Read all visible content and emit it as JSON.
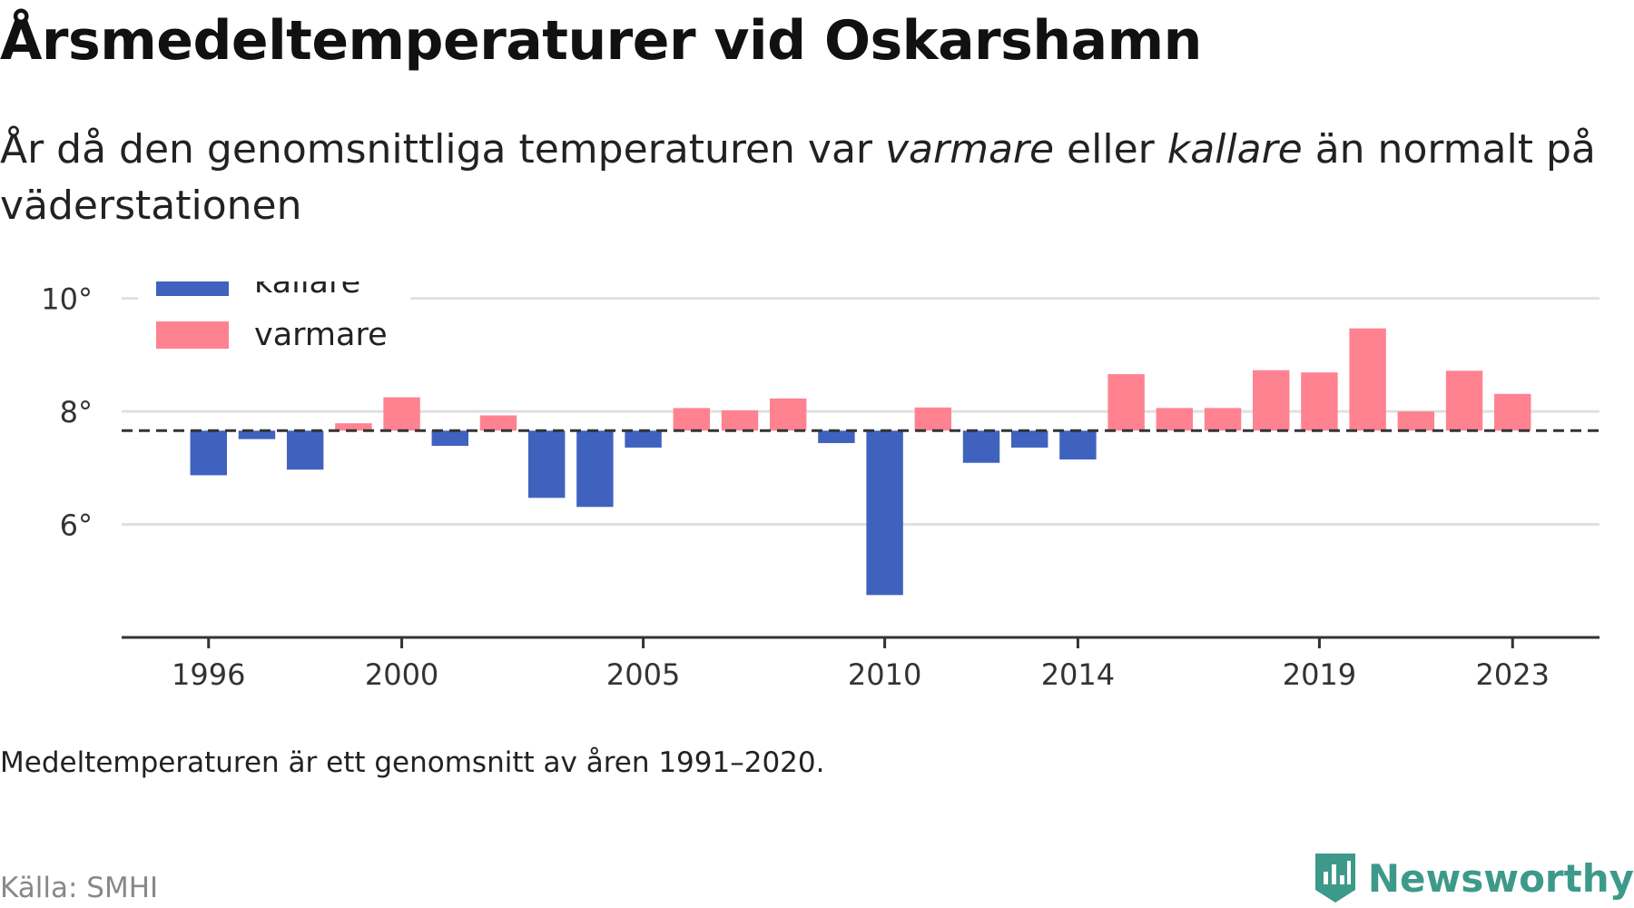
{
  "header": {
    "title": "Årsmedeltemperaturer vid Oskarshamn",
    "subtitle_part1": "År då den genomsnittliga temperaturen var ",
    "subtitle_varmare": "varmare",
    "subtitle_part2": " eller ",
    "subtitle_kallare": "kallare",
    "subtitle_part3": " än normalt på väderstationen"
  },
  "footer": {
    "note": "Medeltemperaturen är ett genomsnitt av åren 1991–2020.",
    "source": "Källa: SMHI",
    "brand": "Newsworthy"
  },
  "icons": {
    "brand_logo": "newsworthy-logo-icon"
  },
  "colors": {
    "kallare": "#4062bf",
    "varmare": "#ff8291",
    "grid": "#e0e0e0",
    "axis": "#333333",
    "brand": "#3d9a8b"
  },
  "chart_data": {
    "type": "bar",
    "baseline": 7.66,
    "baseline_style": "dashed",
    "ylim": [
      4.0,
      10.3
    ],
    "xlim": [
      1994.2,
      2024.8
    ],
    "yticks": [
      6,
      8,
      10
    ],
    "ytick_labels": [
      "6°",
      "8°",
      "10°"
    ],
    "xticks": [
      1996,
      2000,
      2005,
      2010,
      2014,
      2019,
      2023
    ],
    "xtick_labels": [
      "1996",
      "2000",
      "2005",
      "2010",
      "2014",
      "2019",
      "2023"
    ],
    "grid": true,
    "legend_position": "top-left",
    "legend": [
      {
        "key": "kallare",
        "label": "kallare"
      },
      {
        "key": "varmare",
        "label": "varmare"
      }
    ],
    "years": [
      1996,
      1997,
      1998,
      1999,
      2000,
      2001,
      2002,
      2003,
      2004,
      2005,
      2006,
      2007,
      2008,
      2009,
      2010,
      2011,
      2012,
      2013,
      2014,
      2015,
      2016,
      2017,
      2018,
      2019,
      2020,
      2021,
      2022,
      2023
    ],
    "values": [
      6.87,
      7.51,
      6.97,
      7.79,
      8.25,
      7.39,
      7.93,
      6.47,
      6.31,
      7.36,
      8.06,
      8.02,
      8.23,
      7.44,
      4.75,
      8.07,
      7.09,
      7.36,
      7.15,
      8.66,
      8.06,
      8.06,
      8.73,
      8.69,
      9.47,
      8.0,
      8.72,
      8.31
    ],
    "xlabel": "",
    "ylabel": ""
  }
}
